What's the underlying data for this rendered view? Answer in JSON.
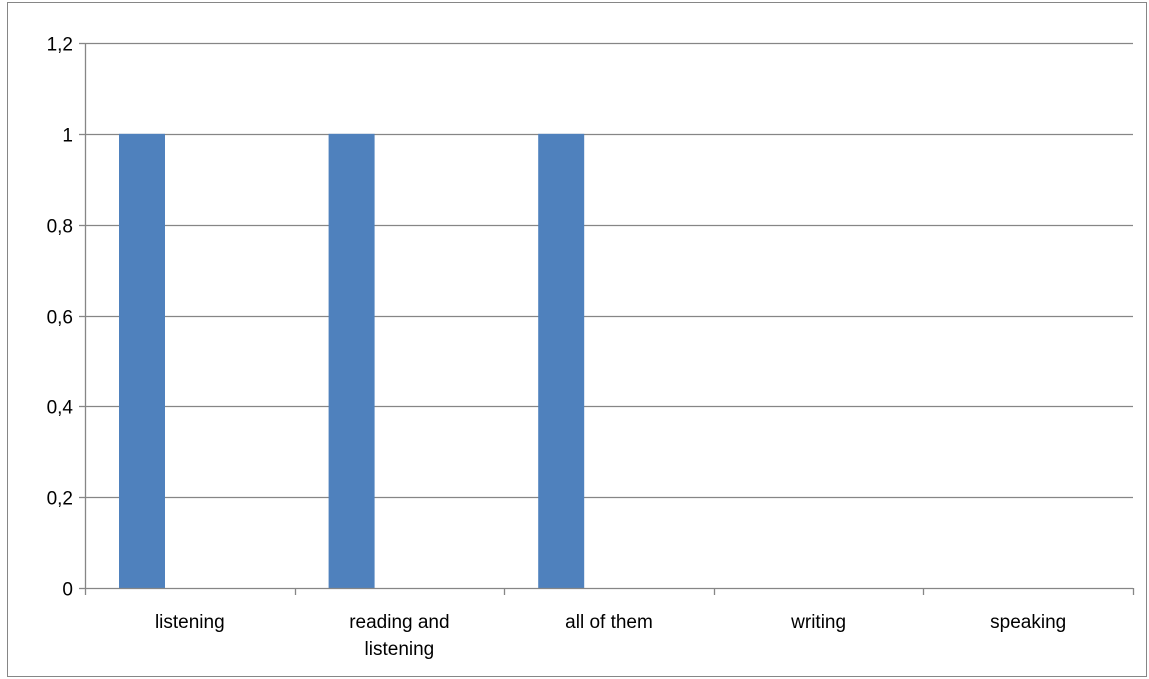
{
  "chart_data": {
    "type": "bar",
    "categories": [
      "listening",
      "reading and listening",
      "all of them",
      "writing",
      "speaking"
    ],
    "category_label_lines": [
      [
        "listening"
      ],
      [
        "reading and",
        "listening"
      ],
      [
        "all of them"
      ],
      [
        "writing"
      ],
      [
        "speaking"
      ]
    ],
    "series": [
      {
        "values": [
          1,
          1,
          1,
          0,
          0
        ],
        "color": "#4f81bd"
      }
    ],
    "ylim": [
      0,
      1.2
    ],
    "yticks": [
      0,
      0.2,
      0.4,
      0.6,
      0.8,
      1,
      1.2
    ],
    "ytick_labels": [
      "0",
      "0,2",
      "0,4",
      "0,6",
      "0,8",
      "1",
      "1,2"
    ],
    "title": "",
    "xlabel": "",
    "ylabel": "",
    "grid": true,
    "legend": "none",
    "gridline_color": "#868686",
    "axis_color": "#868686"
  }
}
